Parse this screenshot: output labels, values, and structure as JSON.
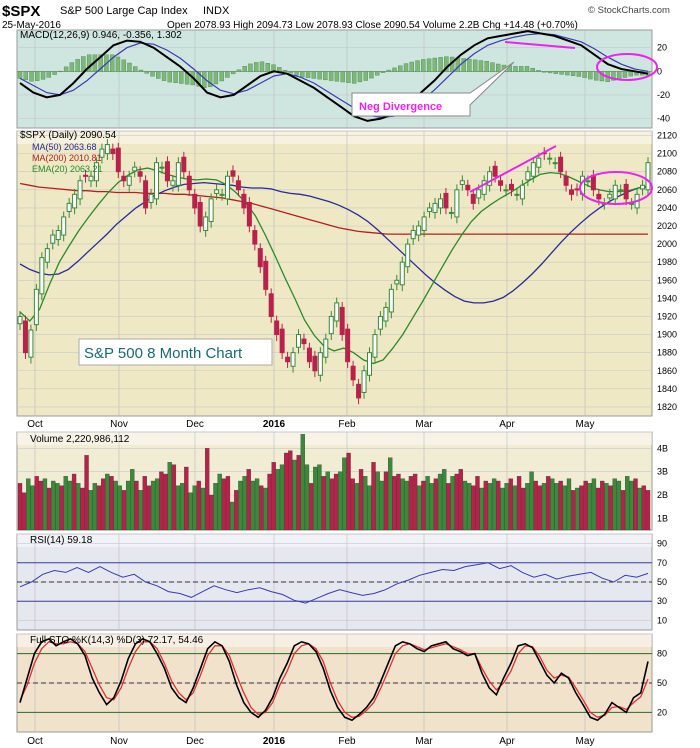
{
  "header": {
    "symbol": "$SPX",
    "name": "S&P 500 Large Cap Index",
    "exchange": "INDX",
    "date": "25-May-2016",
    "ohlc": "Open 2078.93  High 2094.73  Low 2078.93  Close 2090.54  Volume 2.2B  Chg +14.48 (+0.70%)",
    "watermark": "© StockCharts.com"
  },
  "panels": {
    "macd": {
      "label": "MACD(12,26,9) 0.946, -0.356, 1.302"
    },
    "price": {
      "label": "$SPX (Daily) 2090.54",
      "ma50": "MA(50) 2063.68",
      "ma200": "MA(200) 2010.81",
      "ema20": "EMA(20) 2063.21",
      "annotation": "S&P 500 8 Month Chart",
      "callout": "Neg Divergence"
    },
    "volume": {
      "label": "Volume 2,220,986,112"
    },
    "rsi": {
      "label": "RSI(14) 59.18"
    },
    "sto": {
      "label": "Full STO %K(14,3) %D(3) 72.17, 54.46"
    }
  },
  "colors": {
    "up": "#3a8a3a",
    "down": "#b8224a",
    "ma50": "#2a2a9a",
    "ma200": "#b02020",
    "ema20": "#2a8a2a",
    "annotate": "#ee22ee",
    "panel_bg": "#eee8c4",
    "macd_bg": "#cfe6e0",
    "vol_bg": "#f1ecd4",
    "rsi_bg": "#e6e8f0",
    "sto_bg": "#f1e2cc"
  },
  "chart_data": {
    "type": "line",
    "x_axis_labels": [
      "Oct",
      "Nov",
      "Dec",
      "2016",
      "Feb",
      "Mar",
      "Apr",
      "May"
    ],
    "price_axis": {
      "ticks": [
        1820,
        1840,
        1860,
        1880,
        1900,
        1920,
        1940,
        1960,
        1980,
        2000,
        2020,
        2040,
        2060,
        2080,
        2100,
        2120
      ],
      "ylim": [
        1810,
        2125
      ]
    },
    "macd_axis": {
      "ticks": [
        20,
        0,
        -20,
        -40
      ],
      "ylim": [
        -48,
        35
      ]
    },
    "volume_axis": {
      "ticks": [
        "4B",
        "3B",
        "2B",
        "1B"
      ],
      "tick_values": [
        4,
        3,
        2,
        1
      ],
      "ylim": [
        0.5,
        4.7
      ]
    },
    "rsi_axis": {
      "ticks": [
        90,
        70,
        50,
        30,
        10
      ],
      "ylim": [
        0,
        100
      ]
    },
    "sto_axis": {
      "ticks": [
        80,
        50,
        20
      ],
      "ylim": [
        0,
        100
      ]
    },
    "series": [
      {
        "name": "$SPX",
        "values": [
          1920,
          1880,
          1905,
          1950,
          1985,
          1995,
          2010,
          2015,
          2030,
          2045,
          2055,
          2070,
          2075,
          2075,
          2090,
          2105,
          2110,
          2100,
          2080,
          2070,
          2075,
          2085,
          2075,
          2040,
          2055,
          2090,
          2085,
          2070,
          2070,
          2090,
          2080,
          2060,
          2040,
          2020,
          2030,
          2050,
          2060,
          2055,
          2075,
          2075,
          2060,
          2040,
          2020,
          2000,
          1975,
          1950,
          1920,
          1900,
          1880,
          1870,
          1880,
          1900,
          1890,
          1870,
          1860,
          1880,
          1895,
          1920,
          1935,
          1900,
          1870,
          1850,
          1830,
          1860,
          1880,
          1900,
          1920,
          1930,
          1950,
          1960,
          1980,
          2000,
          2015,
          2020,
          2030,
          2040,
          2045,
          2050,
          2040,
          2035,
          2060,
          2070,
          2060,
          2045,
          2060,
          2070,
          2080,
          2075,
          2065,
          2060,
          2060,
          2055,
          2065,
          2080,
          2090,
          2095,
          2100,
          2095,
          2090,
          2080,
          2065,
          2055,
          2060,
          2075,
          2070,
          2060,
          2050,
          2045,
          2055,
          2065,
          2060,
          2050,
          2045,
          2055,
          2065,
          2090
        ]
      },
      {
        "name": "MA(50)",
        "values": [
          1978,
          1972,
          1968,
          1966,
          1967,
          1972,
          1981,
          1991,
          2001,
          2011,
          2022,
          2031,
          2040,
          2047,
          2054,
          2059,
          2063,
          2066,
          2067,
          2068,
          2067,
          2066,
          2065,
          2063,
          2062,
          2062,
          2061,
          2058,
          2056,
          2055,
          2053,
          2050,
          2047,
          2043,
          2038,
          2032,
          2025,
          2016,
          2006,
          1996,
          1986,
          1976,
          1966,
          1957,
          1949,
          1942,
          1937,
          1935,
          1935,
          1937,
          1941,
          1948,
          1957,
          1967,
          1978,
          1990,
          2002,
          2013,
          2023,
          2032,
          2040,
          2047,
          2053,
          2058,
          2062,
          2064
        ]
      },
      {
        "name": "MA(200)",
        "values": [
          2067,
          2065,
          2063,
          2062,
          2061,
          2060,
          2059,
          2059,
          2058,
          2058,
          2057,
          2057,
          2057,
          2056,
          2056,
          2056,
          2055,
          2055,
          2054,
          2053,
          2052,
          2051,
          2049,
          2047,
          2045,
          2042,
          2039,
          2036,
          2033,
          2030,
          2027,
          2024,
          2021,
          2018,
          2016,
          2014,
          2013,
          2012,
          2011,
          2011,
          2011,
          2011,
          2011,
          2011,
          2011,
          2011,
          2011,
          2011,
          2011,
          2011,
          2011,
          2011,
          2011,
          2011,
          2011,
          2011,
          2011,
          2011,
          2011,
          2011,
          2011,
          2011,
          2011,
          2011,
          2011,
          2011
        ]
      },
      {
        "name": "EMA(20)",
        "values": [
          1925,
          1915,
          1928,
          1955,
          1980,
          1998,
          2015,
          2030,
          2044,
          2057,
          2068,
          2076,
          2082,
          2084,
          2081,
          2077,
          2074,
          2072,
          2071,
          2072,
          2071,
          2066,
          2057,
          2046,
          2031,
          2010,
          1987,
          1963,
          1940,
          1916,
          1899,
          1887,
          1882,
          1885,
          1880,
          1872,
          1868,
          1872,
          1885,
          1900,
          1918,
          1936,
          1955,
          1974,
          1993,
          2010,
          2025,
          2036,
          2044,
          2051,
          2057,
          2064,
          2071,
          2077,
          2079,
          2078,
          2074,
          2069,
          2064,
          2060,
          2058,
          2058,
          2059,
          2062,
          2063
        ]
      },
      {
        "name": "Volume",
        "values": [
          2.5,
          2.1,
          2.7,
          2.4,
          2.8,
          2.6,
          2.7,
          2.3,
          2.6,
          2.5,
          2.4,
          2.8,
          2.6,
          2.9,
          2.5,
          2.3,
          3.7,
          2.2,
          2.5,
          2.4,
          2.7,
          2.9,
          2.8,
          2.6,
          2.4,
          2.2,
          2.6,
          3.1,
          2.6,
          2.2,
          2.8,
          2.4,
          2.6,
          2.7,
          3.0,
          2.9,
          3.4,
          3.3,
          2.4,
          2.5,
          3.2,
          2.1,
          2.4,
          2.6,
          2.3,
          4.0,
          2.0,
          2.5,
          2.9,
          2.7,
          2.8,
          1.7,
          2.2,
          2.6,
          2.8,
          3.1,
          2.6,
          2.7,
          2.4,
          2.3,
          2.9,
          3.4,
          3.1,
          3.3,
          3.8,
          3.9,
          3.5,
          3.7,
          4.6,
          3.3,
          2.5,
          3.2,
          3.3,
          2.8,
          3.0,
          2.7,
          2.9,
          3.0,
          3.6,
          3.8,
          2.7,
          2.5,
          3.1,
          2.8,
          2.4,
          3.4,
          3.0,
          2.6,
          3.0,
          3.6,
          2.8,
          2.9,
          2.7,
          2.6,
          2.8,
          2.9,
          2.4,
          2.6,
          2.8,
          2.5,
          2.7,
          2.9,
          3.1,
          2.5,
          2.8,
          2.9,
          3.1,
          2.6,
          2.5,
          2.4,
          2.8,
          2.3,
          2.6,
          2.5,
          2.7,
          2.6,
          2.3,
          2.5,
          2.7,
          2.4,
          2.8,
          2.3,
          2.5,
          3.0,
          2.6,
          2.4,
          2.5,
          2.8,
          2.7,
          2.5,
          2.6,
          2.4,
          2.7,
          2.2,
          2.3,
          2.4,
          2.6,
          2.5,
          2.7,
          2.3,
          2.6,
          2.5,
          2.4,
          2.7,
          2.6,
          2.2,
          2.8,
          2.6,
          2.7,
          2.3,
          2.4,
          2.2
        ]
      },
      {
        "name": "RSI(14)",
        "values": [
          45,
          50,
          58,
          62,
          60,
          65,
          60,
          66,
          60,
          55,
          58,
          50,
          46,
          40,
          38,
          34,
          40,
          46,
          42,
          39,
          42,
          44,
          40,
          37,
          31,
          28,
          33,
          38,
          42,
          39,
          36,
          38,
          42,
          48,
          52,
          57,
          60,
          63,
          62,
          66,
          68,
          70,
          64,
          67,
          60,
          55,
          58,
          53,
          56,
          58,
          60,
          54,
          50,
          57,
          55,
          59
        ]
      },
      {
        "name": "%K",
        "values": [
          30,
          55,
          80,
          92,
          95,
          88,
          92,
          95,
          90,
          78,
          55,
          40,
          28,
          35,
          52,
          75,
          90,
          95,
          92,
          80,
          65,
          45,
          35,
          30,
          45,
          65,
          85,
          92,
          88,
          72,
          48,
          30,
          20,
          15,
          22,
          35,
          55,
          70,
          88,
          92,
          90,
          82,
          65,
          42,
          25,
          15,
          12,
          18,
          25,
          35,
          52,
          70,
          88,
          92,
          90,
          85,
          82,
          88,
          90,
          92,
          85,
          82,
          78,
          80,
          60,
          45,
          38,
          55,
          70,
          88,
          90,
          86,
          72,
          58,
          50,
          60,
          55,
          40,
          28,
          15,
          12,
          18,
          30,
          25,
          20,
          35,
          40,
          72
        ]
      },
      {
        "name": "%D",
        "values": [
          32,
          48,
          70,
          85,
          92,
          90,
          90,
          92,
          90,
          82,
          65,
          48,
          35,
          33,
          45,
          65,
          82,
          92,
          92,
          85,
          70,
          52,
          40,
          33,
          40,
          58,
          78,
          88,
          88,
          78,
          58,
          40,
          25,
          18,
          20,
          30,
          48,
          62,
          80,
          88,
          90,
          85,
          72,
          50,
          32,
          20,
          15,
          16,
          22,
          30,
          45,
          62,
          80,
          88,
          90,
          87,
          84,
          86,
          88,
          90,
          87,
          84,
          80,
          80,
          65,
          52,
          43,
          50,
          62,
          80,
          88,
          87,
          77,
          63,
          55,
          58,
          56,
          45,
          33,
          20,
          15,
          17,
          25,
          26,
          23,
          30,
          36,
          54
        ]
      }
    ]
  }
}
